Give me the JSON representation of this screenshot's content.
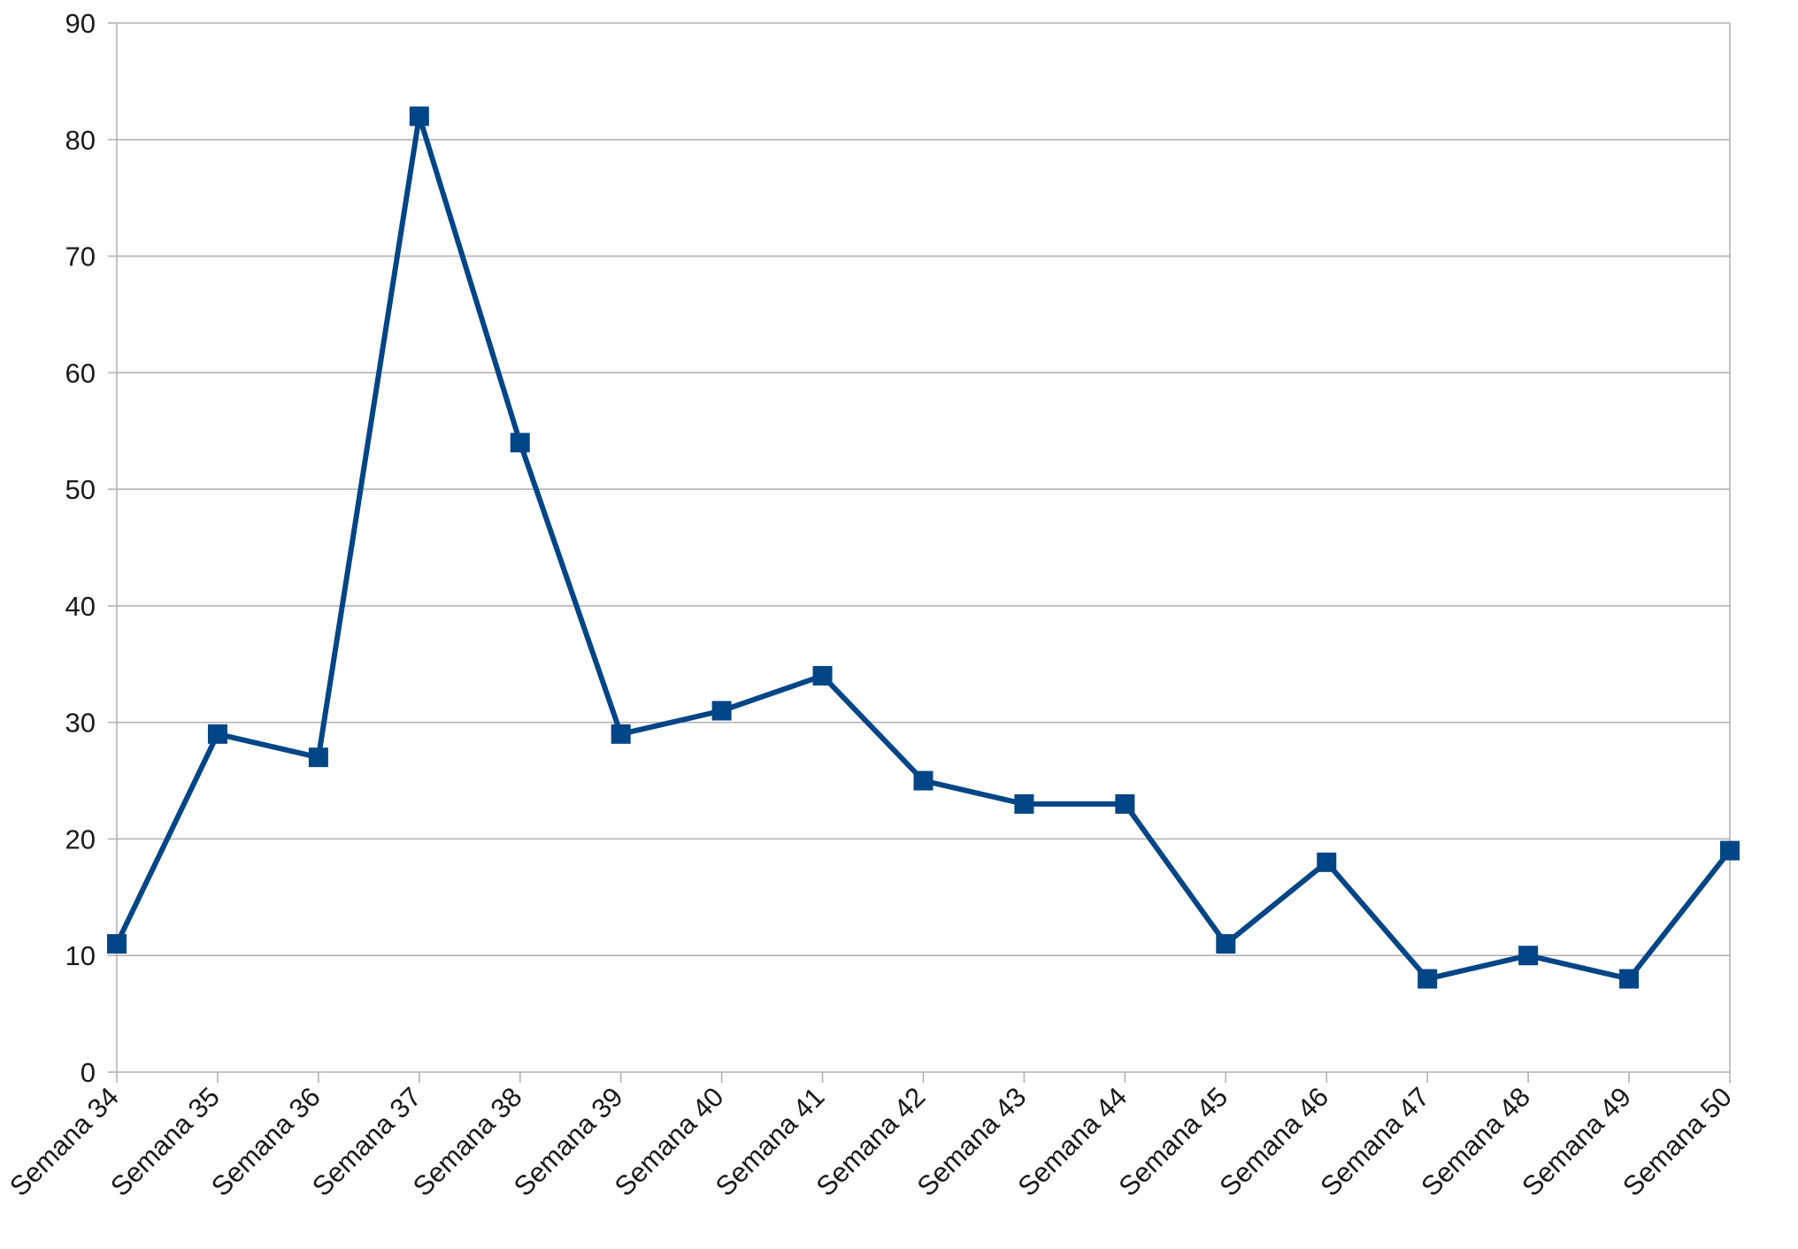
{
  "chart_data": {
    "type": "line",
    "title": "",
    "xlabel": "",
    "ylabel": "",
    "categories": [
      "Semana 34",
      "Semana 35",
      "Semana 36",
      "Semana 37",
      "Semana 38",
      "Semana 39",
      "Semana 40",
      "Semana 41",
      "Semana 42",
      "Semana 43",
      "Semana 44",
      "Semana 45",
      "Semana 46",
      "Semana 47",
      "Semana 48",
      "Semana 49",
      "Semana 50"
    ],
    "series": [
      {
        "values": [
          11,
          29,
          27,
          82,
          54,
          29,
          31,
          34,
          25,
          23,
          23,
          11,
          18,
          8,
          10,
          8,
          19
        ],
        "color": "#004586",
        "marker": "square"
      }
    ],
    "ylim": [
      0,
      90
    ],
    "yticks": [
      0,
      10,
      20,
      30,
      40,
      50,
      60,
      70,
      80,
      90
    ],
    "grid": "horizontal",
    "legend": "none",
    "colors": {
      "line": "#004586",
      "grid": "#b3b3b3",
      "text": "#1a1a1a"
    }
  }
}
